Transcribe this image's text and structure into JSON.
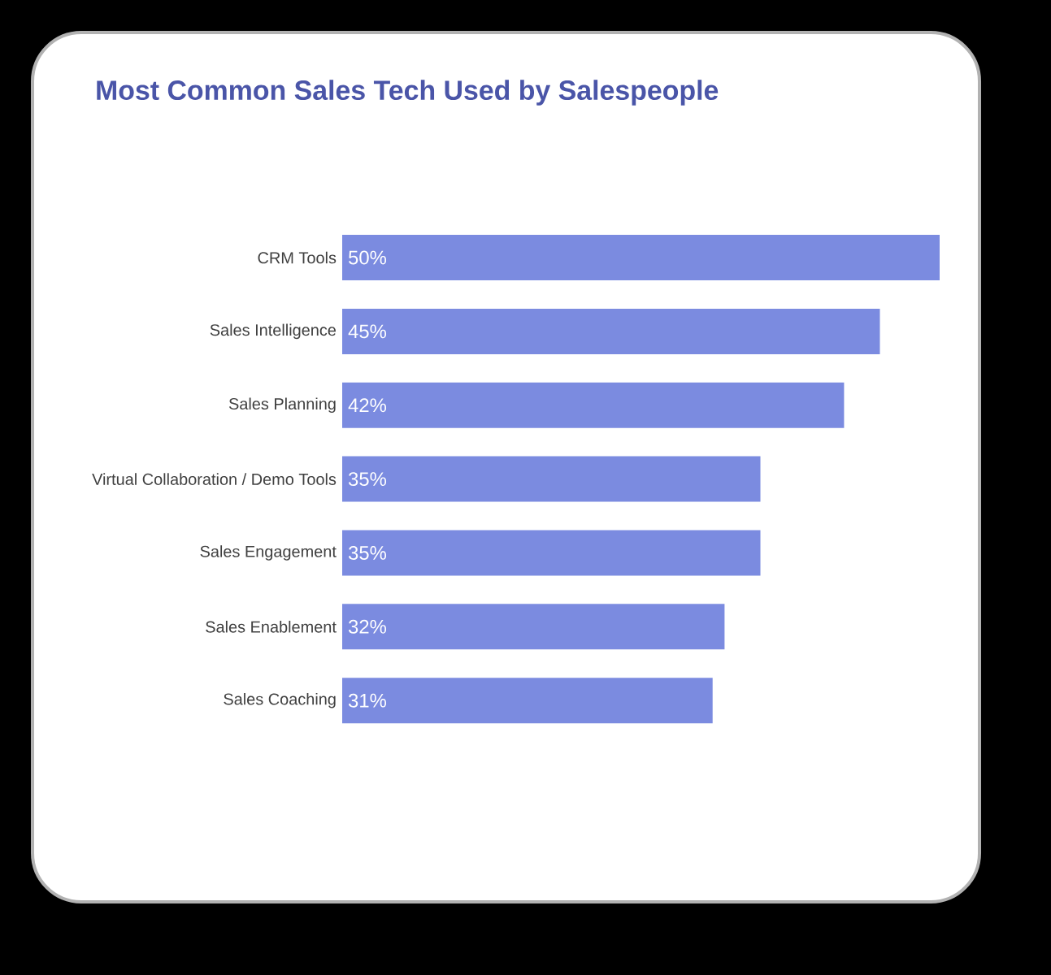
{
  "chart_data": {
    "type": "bar",
    "orientation": "horizontal",
    "title": "Most Common Sales Tech Used by Salespeople",
    "categories": [
      "CRM Tools",
      "Sales Intelligence",
      "Sales Planning",
      "Virtual Collaboration / Demo Tools",
      "Sales Engagement",
      "Sales Enablement",
      "Sales Coaching"
    ],
    "values": [
      50,
      45,
      42,
      35,
      35,
      32,
      31
    ],
    "value_labels": [
      "50%",
      "45%",
      "42%",
      "35%",
      "35%",
      "32%",
      "31%"
    ],
    "color": "#7b8be0"
  }
}
